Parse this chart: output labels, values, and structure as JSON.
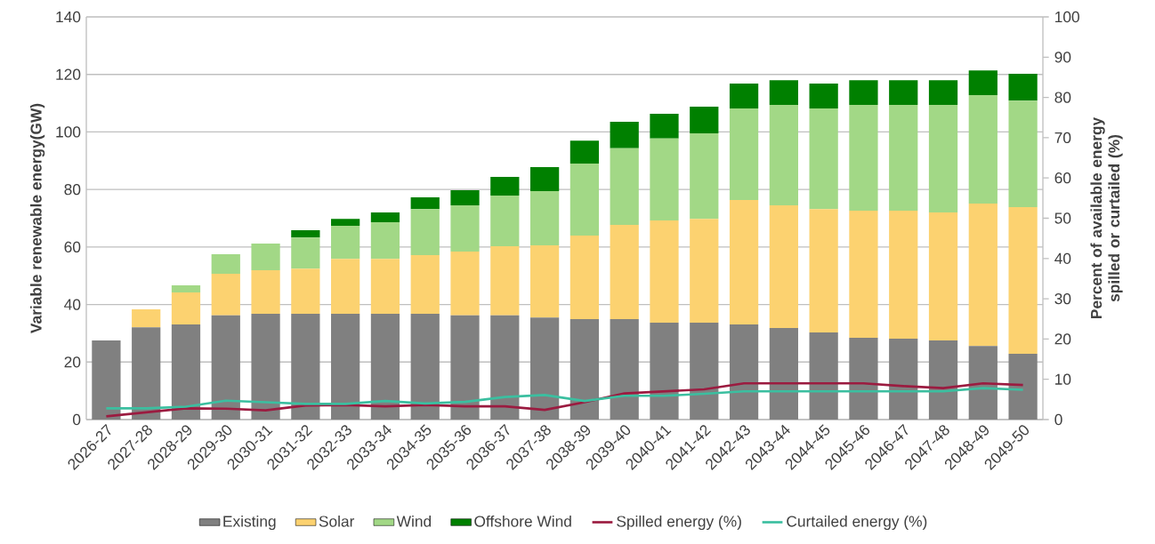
{
  "chart_data": {
    "type": "bar",
    "stacked": true,
    "categories": [
      "2026-27",
      "2027-28",
      "2028-29",
      "2029-30",
      "2030-31",
      "2031-32",
      "2032-33",
      "2033-34",
      "2034-35",
      "2035-36",
      "2036-37",
      "2037-38",
      "2038-39",
      "2039-40",
      "2040-41",
      "2041-42",
      "2042-43",
      "2043-44",
      "2044-45",
      "2045-46",
      "2046-47",
      "2047-48",
      "2048-49",
      "2049-50"
    ],
    "series": [
      {
        "name": "Existing",
        "color": "#808080",
        "values": [
          27.5,
          32.1,
          33.1,
          36.2,
          36.8,
          36.8,
          36.8,
          36.8,
          36.8,
          36.2,
          36.2,
          35.5,
          34.9,
          34.9,
          33.7,
          33.7,
          33.1,
          31.8,
          30.3,
          28.4,
          28.1,
          27.5,
          25.6,
          22.9
        ]
      },
      {
        "name": "Solar",
        "color": "#fcd270",
        "values": [
          0,
          6.2,
          11.1,
          14.5,
          15.1,
          15.7,
          19.1,
          19.1,
          20.4,
          22.2,
          24.1,
          25.1,
          29.1,
          32.8,
          35.5,
          36.1,
          43.2,
          42.7,
          42.9,
          44.2,
          44.5,
          44.5,
          49.5,
          51.0
        ]
      },
      {
        "name": "Wind",
        "color": "#a2d886",
        "values": [
          0,
          0,
          2.5,
          6.8,
          9.3,
          10.8,
          11.5,
          12.7,
          16.0,
          16.1,
          17.6,
          18.8,
          25.0,
          26.6,
          28.5,
          29.7,
          31.9,
          34.9,
          35.0,
          36.8,
          36.8,
          37.4,
          37.7,
          37.0
        ]
      },
      {
        "name": "Offshore Wind",
        "color": "#008000",
        "values": [
          0,
          0,
          0,
          0,
          0,
          2.5,
          2.4,
          3.4,
          4.1,
          5.2,
          6.5,
          8.4,
          8.0,
          9.2,
          8.6,
          9.3,
          8.6,
          8.6,
          8.6,
          8.6,
          8.6,
          8.6,
          8.6,
          9.3
        ]
      },
      {
        "name": "Spilled energy (%)",
        "color": "#9b1b40",
        "type": "line",
        "axis": "y2",
        "values": [
          0.8,
          1.8,
          2.8,
          2.7,
          2.3,
          3.5,
          3.6,
          3.3,
          3.6,
          3.3,
          3.3,
          2.4,
          4.3,
          6.5,
          7.0,
          7.5,
          9.0,
          9.0,
          9.0,
          9.0,
          8.3,
          7.8,
          9.0,
          8.6
        ]
      },
      {
        "name": "Curtailed energy (%)",
        "color": "#3bbfa0",
        "type": "line",
        "axis": "y2",
        "values": [
          2.8,
          2.8,
          3.2,
          4.7,
          4.3,
          3.9,
          3.9,
          4.6,
          4.0,
          4.4,
          5.6,
          6.1,
          4.6,
          5.9,
          5.9,
          6.4,
          7.0,
          7.0,
          7.0,
          7.0,
          7.0,
          7.0,
          7.8,
          7.4
        ]
      }
    ],
    "ylabel": "Variable renewable energy(GW)",
    "y2label": "Percent of available energy spilled or curtailed (%)",
    "ylim": [
      0,
      140
    ],
    "yticks": [
      0,
      20,
      40,
      60,
      80,
      100,
      120,
      140
    ],
    "y2lim": [
      0,
      100
    ],
    "y2ticks": [
      0,
      10,
      20,
      30,
      40,
      50,
      60,
      70,
      80,
      90,
      100
    ],
    "grid": "y",
    "legend": "bottom"
  }
}
